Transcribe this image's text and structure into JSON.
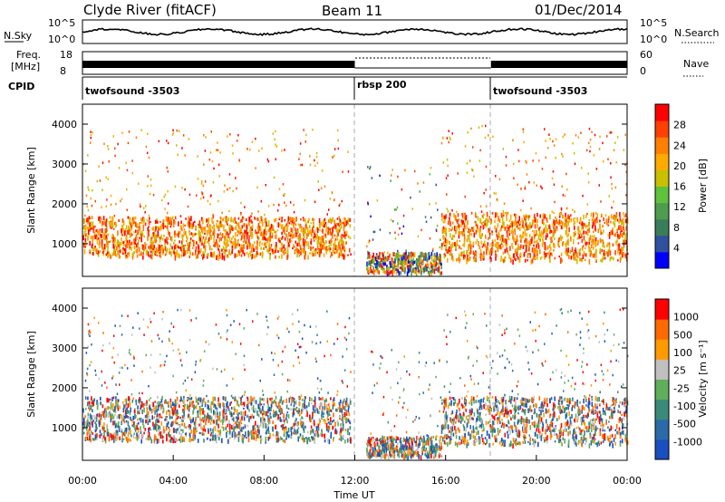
{
  "header": {
    "station": "Clyde River (fitACF)",
    "beam": "Beam 11",
    "date": "01/Dec/2014"
  },
  "status_panel": {
    "nsky_label": "N.Sky",
    "nsky_ticks": [
      "10^5",
      "10^0"
    ],
    "nsearch_label": "N.Search",
    "nsearch_ticks": [
      "10^5",
      "10^0"
    ],
    "freq_label_1": "Freq.",
    "freq_label_2": "[MHz]",
    "freq_ticks": [
      "18",
      "8"
    ],
    "nave_label": "Nave",
    "nave_ticks": [
      "60",
      "0"
    ],
    "cpid_label": "CPID",
    "cpid_segments": [
      {
        "label": "twofsound -3503",
        "start_hour": 0
      },
      {
        "label": "rbsp 200",
        "start_hour": 12
      },
      {
        "label": "twofsound -3503",
        "start_hour": 18
      }
    ],
    "colors": {
      "frequency_bar": "#000000",
      "nsky_line": "#000000"
    }
  },
  "x_axis": {
    "title": "Time UT",
    "ticks": [
      "00:00",
      "04:00",
      "08:00",
      "12:00",
      "16:00",
      "20:00",
      "00:00"
    ],
    "hours": [
      0,
      4,
      8,
      12,
      16,
      20,
      24
    ]
  },
  "chart_data": [
    {
      "type": "heatmap",
      "title": "",
      "xlabel": "",
      "ylabel": "Slant Range [km]",
      "xlim": [
        0,
        24
      ],
      "ylim": [
        180,
        4500
      ],
      "yticks": [
        "4000",
        "3000",
        "2000",
        "1000"
      ],
      "ytick_values": [
        4000,
        3000,
        2000,
        1000
      ],
      "colorbar": {
        "label": "Power [dB]",
        "ticks": [
          "28",
          "24",
          "20",
          "16",
          "12",
          "8",
          "4"
        ],
        "range": [
          0,
          30
        ],
        "colors": [
          "#0000ff",
          "#3050a0",
          "#3a7d5a",
          "#4e9d4e",
          "#5ec23c",
          "#c8c000",
          "#ffaa00",
          "#ff8000",
          "#ff4000",
          "#ff0000"
        ]
      },
      "scatter_bands": [
        {
          "from_hour": 0.0,
          "to_hour": 11.8,
          "range_km": [
            700,
            1700
          ],
          "value": "high"
        },
        {
          "from_hour": 12.5,
          "to_hour": 15.8,
          "range_km": [
            300,
            800
          ],
          "value": "mixed"
        },
        {
          "from_hour": 15.8,
          "to_hour": 24.0,
          "range_km": [
            600,
            1800
          ],
          "value": "high"
        }
      ]
    },
    {
      "type": "heatmap",
      "title": "",
      "xlabel": "Time UT",
      "ylabel": "Slant Range [km]",
      "xlim": [
        0,
        24
      ],
      "ylim": [
        180,
        4500
      ],
      "yticks": [
        "4000",
        "3000",
        "2000",
        "1000"
      ],
      "ytick_values": [
        4000,
        3000,
        2000,
        1000
      ],
      "colorbar": {
        "label": "Velocity [m s⁻¹]",
        "ticks": [
          "1000",
          "500",
          "100",
          "25",
          "-25",
          "-100",
          "-500",
          "-1000"
        ],
        "colors": [
          "#1a4fbf",
          "#2a6aa8",
          "#3a8a7a",
          "#5fae5a",
          "#c0c0c0",
          "#ff9a00",
          "#ff6a00",
          "#ff0000"
        ]
      },
      "scatter_bands": [
        {
          "from_hour": 0.0,
          "to_hour": 11.8,
          "range_km": [
            700,
            1800
          ],
          "value": "mixed"
        },
        {
          "from_hour": 12.5,
          "to_hour": 15.8,
          "range_km": [
            300,
            800
          ],
          "value": "mixed"
        },
        {
          "from_hour": 15.8,
          "to_hour": 24.0,
          "range_km": [
            600,
            1800
          ],
          "value": "mixed"
        }
      ]
    }
  ]
}
